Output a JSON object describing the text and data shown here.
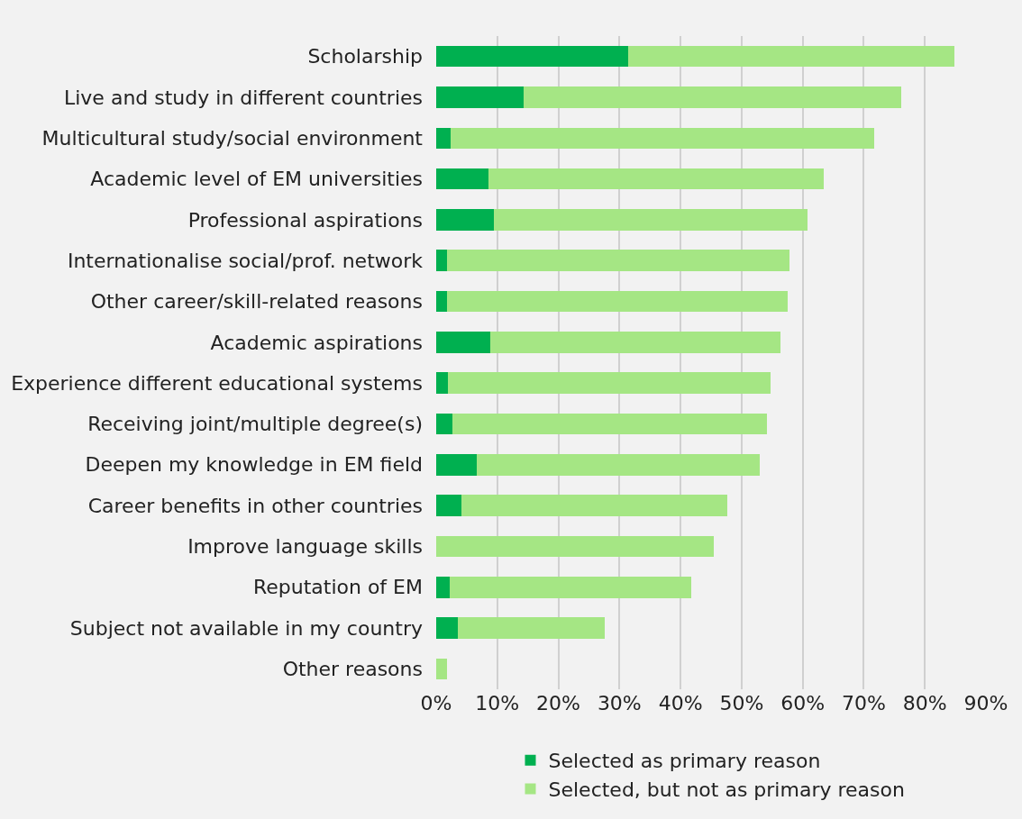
{
  "chart_data": {
    "type": "bar",
    "orientation": "horizontal",
    "stacked": true,
    "categories": [
      "Scholarship",
      "Live and study in different countries",
      "Multicultural study/social environment",
      "Academic level of EM universities",
      "Professional aspirations",
      "Internationalise social/prof. network",
      "Other career/skill-related reasons",
      "Academic aspirations",
      "Experience different educational systems",
      "Receiving joint/multiple degree(s)",
      "Deepen my knowledge in EM field",
      "Career benefits in other countries",
      "Improve language skills",
      "Reputation of EM",
      "Subject not available in my country",
      "Other reasons"
    ],
    "series": [
      {
        "name": "Selected as primary reason",
        "color": "#00b050",
        "values": [
          31.4,
          14.3,
          2.4,
          8.5,
          9.4,
          1.7,
          1.7,
          8.9,
          1.9,
          2.7,
          6.7,
          4.1,
          0,
          2.2,
          3.6,
          0
        ]
      },
      {
        "name": "Selected, but not as primary reason",
        "color": "#a5e684",
        "values": [
          53.4,
          61.8,
          69.3,
          54.9,
          51.4,
          56.2,
          55.8,
          47.4,
          52.8,
          51.4,
          46.2,
          43.6,
          45.5,
          39.5,
          24.0,
          1.8
        ]
      }
    ],
    "xlim": [
      0,
      90
    ],
    "xticks": [
      {
        "value": 0,
        "label": "0%"
      },
      {
        "value": 10,
        "label": "10%"
      },
      {
        "value": 20,
        "label": "20%"
      },
      {
        "value": 30,
        "label": "30%"
      },
      {
        "value": 40,
        "label": "40%"
      },
      {
        "value": 50,
        "label": "50%"
      },
      {
        "value": 60,
        "label": "60%"
      },
      {
        "value": 70,
        "label": "70%"
      },
      {
        "value": 80,
        "label": "80%"
      },
      {
        "value": 90,
        "label": "90%"
      }
    ],
    "grid": "x",
    "legend": "bottom"
  }
}
